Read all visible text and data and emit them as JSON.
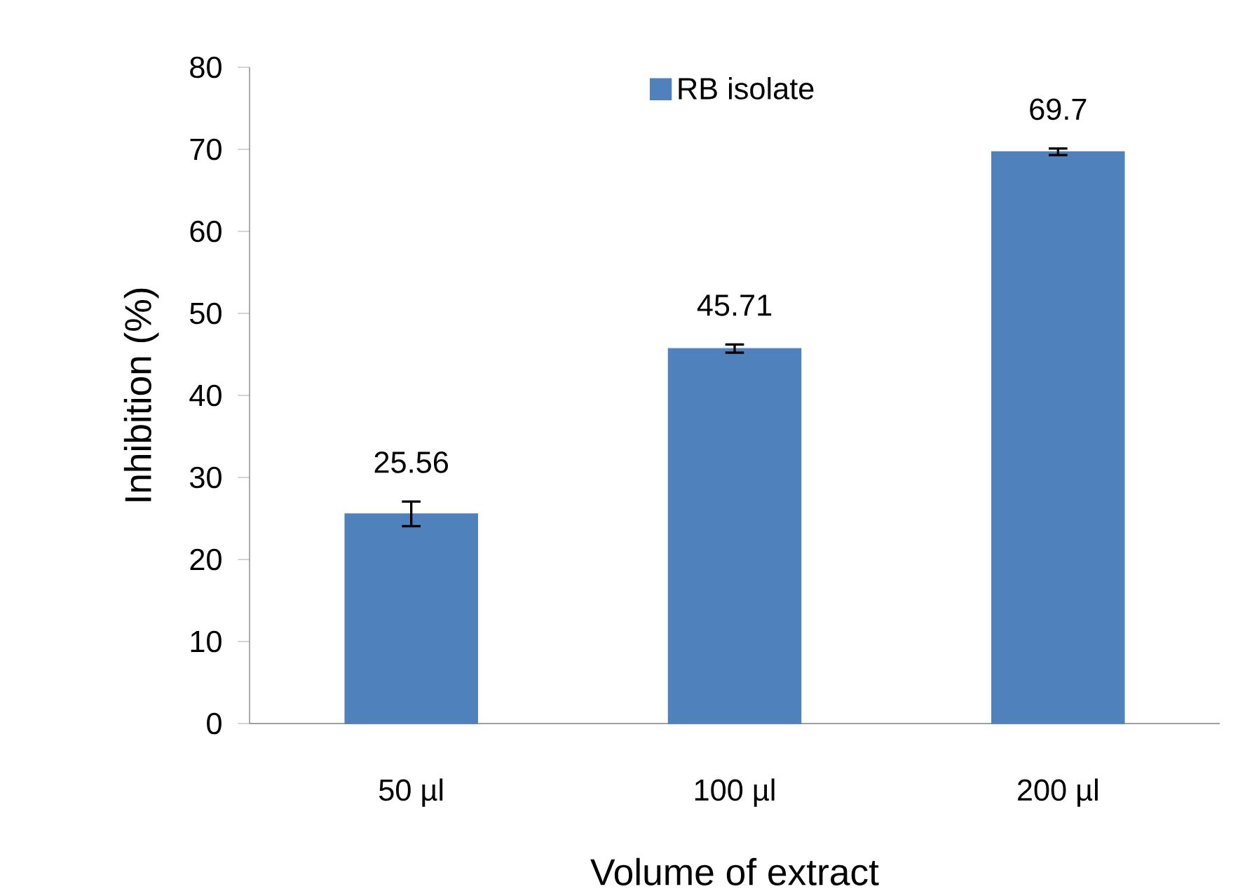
{
  "chart_data": {
    "type": "bar",
    "xlabel": "Volume of extract",
    "ylabel": "Inhibition (%)",
    "categories": [
      "50 µl",
      "100 µl",
      "200 µl"
    ],
    "series": [
      {
        "name": "RB isolate",
        "color": "#4f81bd",
        "values": [
          25.56,
          45.71,
          69.7
        ],
        "errors": [
          1.5,
          0.5,
          0.4
        ]
      }
    ],
    "ylim": [
      0,
      80
    ],
    "yticks": [
      0,
      10,
      20,
      30,
      40,
      50,
      60,
      70,
      80
    ],
    "data_labels": true,
    "legend": "top",
    "grid": false
  }
}
